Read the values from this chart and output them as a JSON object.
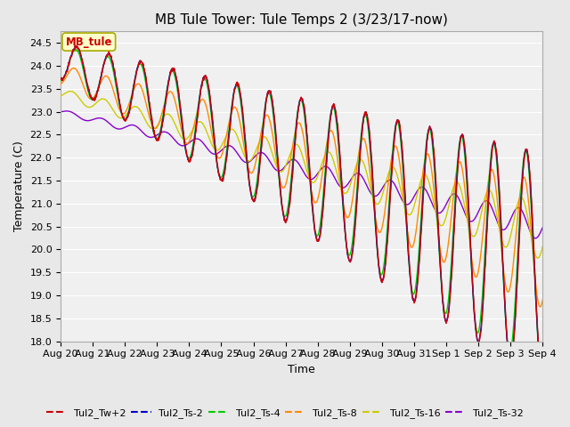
{
  "title": "MB Tule Tower: Tule Temps 2 (3/23/17-now)",
  "xlabel": "Time",
  "ylabel": "Temperature (C)",
  "ylim": [
    18.0,
    24.75
  ],
  "yticks": [
    18.0,
    18.5,
    19.0,
    19.5,
    20.0,
    20.5,
    21.0,
    21.5,
    22.0,
    22.5,
    23.0,
    23.5,
    24.0,
    24.5
  ],
  "xtick_labels": [
    "Aug 20",
    "Aug 21",
    "Aug 22",
    "Aug 23",
    "Aug 24",
    "Aug 25",
    "Aug 26",
    "Aug 27",
    "Aug 28",
    "Aug 29",
    "Aug 30",
    "Aug 31",
    "Sep 1",
    "Sep 2",
    "Sep 3",
    "Sep 4"
  ],
  "series_colors": {
    "Tul2_Tw+2": "#cc0000",
    "Tul2_Ts-2": "#0000cc",
    "Tul2_Ts-4": "#00cc00",
    "Tul2_Ts-8": "#ff8800",
    "Tul2_Ts-16": "#cccc00",
    "Tul2_Ts-32": "#8800cc"
  },
  "legend_label": "MB_tule",
  "legend_color": "#cc0000",
  "background_color": "#e8e8e8",
  "plot_background": "#f0f0f0",
  "grid_color": "#ffffff",
  "title_fontsize": 11,
  "tick_fontsize": 8,
  "label_fontsize": 9
}
